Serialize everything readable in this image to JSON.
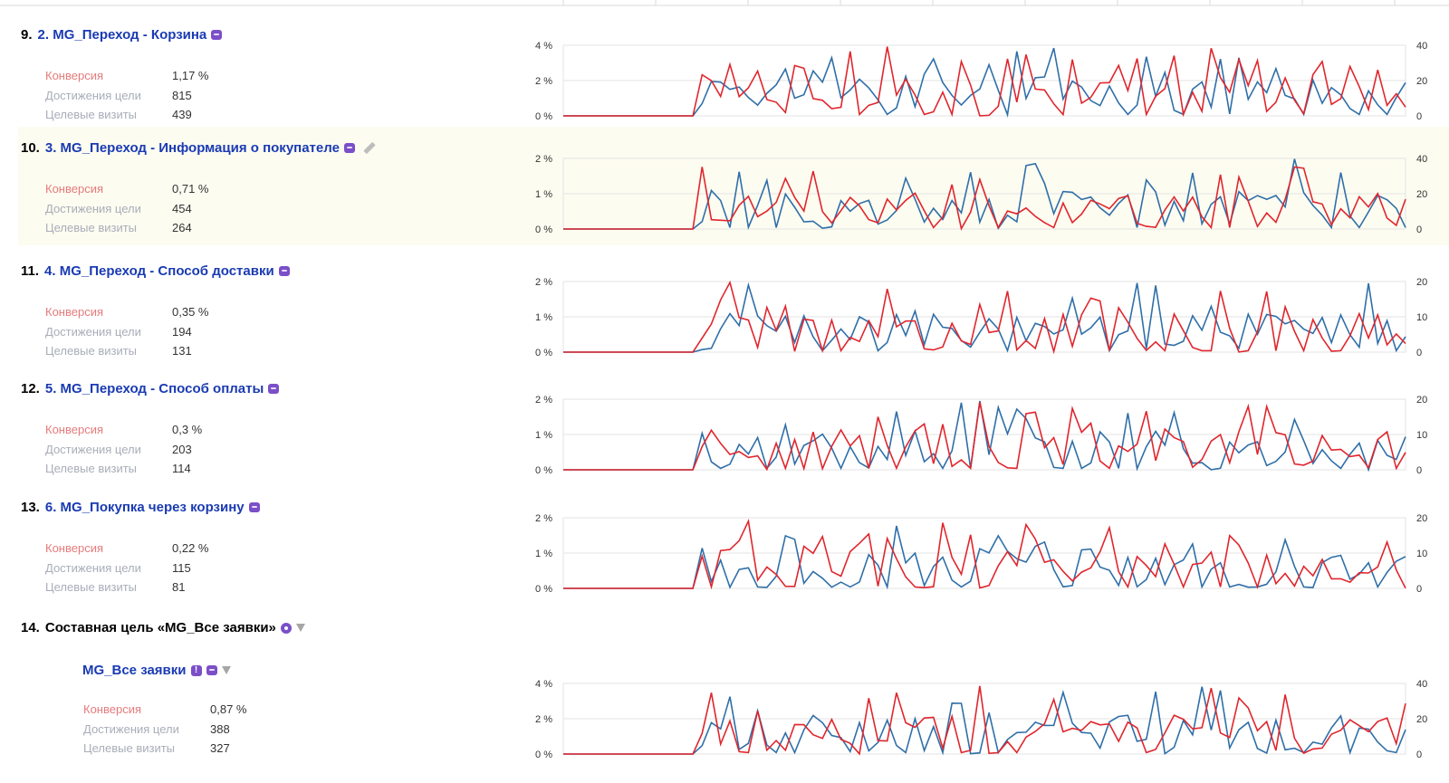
{
  "goals": [
    {
      "index": "9.",
      "name": "2. MG_Переход - Корзина",
      "highlight": false,
      "pencil": false,
      "metrics": {
        "conversion_label": "Конверсия",
        "conversion": "1,17 %",
        "achievements_label": "Достижения цели",
        "achievements": "815",
        "visits_label": "Целевые визиты",
        "visits": "439"
      },
      "chart": {
        "left_ticks": [
          "4 %",
          "2 %",
          "0 %"
        ],
        "right_ticks": [
          "40",
          "20",
          "0"
        ],
        "left_max": 4,
        "right_max": 40
      }
    },
    {
      "index": "10.",
      "name": "3. MG_Переход - Информация о покупателе",
      "highlight": true,
      "pencil": true,
      "metrics": {
        "conversion_label": "Конверсия",
        "conversion": "0,71 %",
        "achievements_label": "Достижения цели",
        "achievements": "454",
        "visits_label": "Целевые визиты",
        "visits": "264"
      },
      "chart": {
        "left_ticks": [
          "2 %",
          "1 %",
          "0 %"
        ],
        "right_ticks": [
          "40",
          "20",
          "0"
        ],
        "left_max": 2,
        "right_max": 40
      }
    },
    {
      "index": "11.",
      "name": "4. MG_Переход - Способ доставки",
      "highlight": false,
      "pencil": false,
      "metrics": {
        "conversion_label": "Конверсия",
        "conversion": "0,35 %",
        "achievements_label": "Достижения цели",
        "achievements": "194",
        "visits_label": "Целевые визиты",
        "visits": "131"
      },
      "chart": {
        "left_ticks": [
          "2 %",
          "1 %",
          "0 %"
        ],
        "right_ticks": [
          "20",
          "10",
          "0"
        ],
        "left_max": 2,
        "right_max": 20
      }
    },
    {
      "index": "12.",
      "name": "5. MG_Переход - Способ оплаты",
      "highlight": false,
      "pencil": false,
      "metrics": {
        "conversion_label": "Конверсия",
        "conversion": "0,3 %",
        "achievements_label": "Достижения цели",
        "achievements": "203",
        "visits_label": "Целевые визиты",
        "visits": "114"
      },
      "chart": {
        "left_ticks": [
          "2 %",
          "1 %",
          "0 %"
        ],
        "right_ticks": [
          "20",
          "10",
          "0"
        ],
        "left_max": 2,
        "right_max": 20
      }
    },
    {
      "index": "13.",
      "name": "6. MG_Покупка через корзину",
      "highlight": false,
      "pencil": false,
      "metrics": {
        "conversion_label": "Конверсия",
        "conversion": "0,22 %",
        "achievements_label": "Достижения цели",
        "achievements": "115",
        "visits_label": "Целевые визиты",
        "visits": "81"
      },
      "chart": {
        "left_ticks": [
          "2 %",
          "1 %",
          "0 %"
        ],
        "right_ticks": [
          "20",
          "10",
          "0"
        ],
        "left_max": 2,
        "right_max": 20
      }
    }
  ],
  "composite": {
    "index": "14.",
    "name": "Составная цель «MG_Все заявки»",
    "sub_goal": {
      "name": "MG_Все заявки",
      "metrics": {
        "conversion_label": "Конверсия",
        "conversion": "0,87 %",
        "achievements_label": "Достижения цели",
        "achievements": "388",
        "visits_label": "Целевые визиты",
        "visits": "327"
      },
      "chart": {
        "left_ticks": [
          "4 %",
          "2 %",
          "0 %"
        ],
        "right_ticks": [
          "40",
          "20",
          "0"
        ],
        "left_max": 4,
        "right_max": 40
      }
    }
  },
  "colors": {
    "conversion_line": "#e0262d",
    "visits_line": "#2f6fa8",
    "goal_link": "#1a3bb3",
    "icon": "#7b4fc8"
  },
  "icons": [
    "tag-icon",
    "pencil-icon",
    "round-goal-icon",
    "exclamation-icon",
    "filter-icon"
  ]
}
